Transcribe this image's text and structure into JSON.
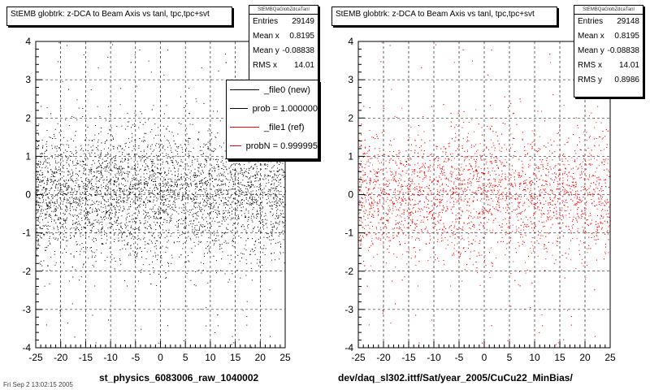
{
  "chart_data": [
    {
      "type": "scatter",
      "title": "StEMB globtrk: z-DCA to Beam Axis vs tanl, tpc,tpc+svt",
      "xlim": [
        -25,
        25
      ],
      "ylim": [
        -4,
        4
      ],
      "x_ticks": [
        -25,
        -20,
        -15,
        -10,
        -5,
        0,
        5,
        10,
        15,
        20,
        25
      ],
      "y_ticks": [
        -4,
        -3,
        -2,
        -1,
        0,
        1,
        2,
        3,
        4
      ],
      "grid": true,
      "marker_color": "#000000",
      "point_density": "dense band between y=-2 and y=2 across full x range, sparse beyond",
      "stats": {
        "header": "StEMBQaGlobZdcaTanl",
        "rows": [
          {
            "label": "Entries",
            "value": "29149"
          },
          {
            "label": "Mean x",
            "value": "0.8195"
          },
          {
            "label": "Mean y",
            "value": "-0.08838"
          },
          {
            "label": "RMS x",
            "value": "14.01"
          }
        ]
      },
      "legend": {
        "placement": "right",
        "entries": [
          {
            "label": "_file0 (new)",
            "color": "#000000"
          },
          {
            "label": "prob = 1.000000",
            "color": "#000000"
          },
          {
            "label": "_file1 (ref)",
            "color": "#ff0000"
          },
          {
            "label": "probN = 0.999995",
            "color": "#ff0000"
          }
        ]
      },
      "bottom_label": "st_physics_6083006_raw_1040002"
    },
    {
      "type": "scatter",
      "title": "StEMB globtrk: z-DCA to Beam Axis vs tanl, tpc,tpc+svt",
      "xlim": [
        -25,
        25
      ],
      "ylim": [
        -4,
        4
      ],
      "x_ticks": [
        -25,
        -20,
        -15,
        -10,
        -5,
        0,
        5,
        10,
        15,
        20,
        25
      ],
      "y_ticks": [
        -4,
        -3,
        -2,
        -1,
        0,
        1,
        2,
        3,
        4
      ],
      "grid": true,
      "marker_color": "#ff0000",
      "point_density": "dense band between y=-2 and y=2 across full x range, sparse beyond",
      "stats": {
        "header": "StEMBQaGlobZdcaTanl",
        "rows": [
          {
            "label": "Entries",
            "value": "29148"
          },
          {
            "label": "Mean x",
            "value": "0.8195"
          },
          {
            "label": "Mean y",
            "value": "-0.08838"
          },
          {
            "label": "RMS x",
            "value": "14.01"
          },
          {
            "label": "RMS y",
            "value": "0.8986"
          }
        ]
      },
      "bottom_label": "dev/daq_sl302.ittf/Sat/year_2005/CuCu22_MinBias/"
    }
  ],
  "footer": {
    "text": "Fri Sep 2 13:02:15 2005"
  }
}
